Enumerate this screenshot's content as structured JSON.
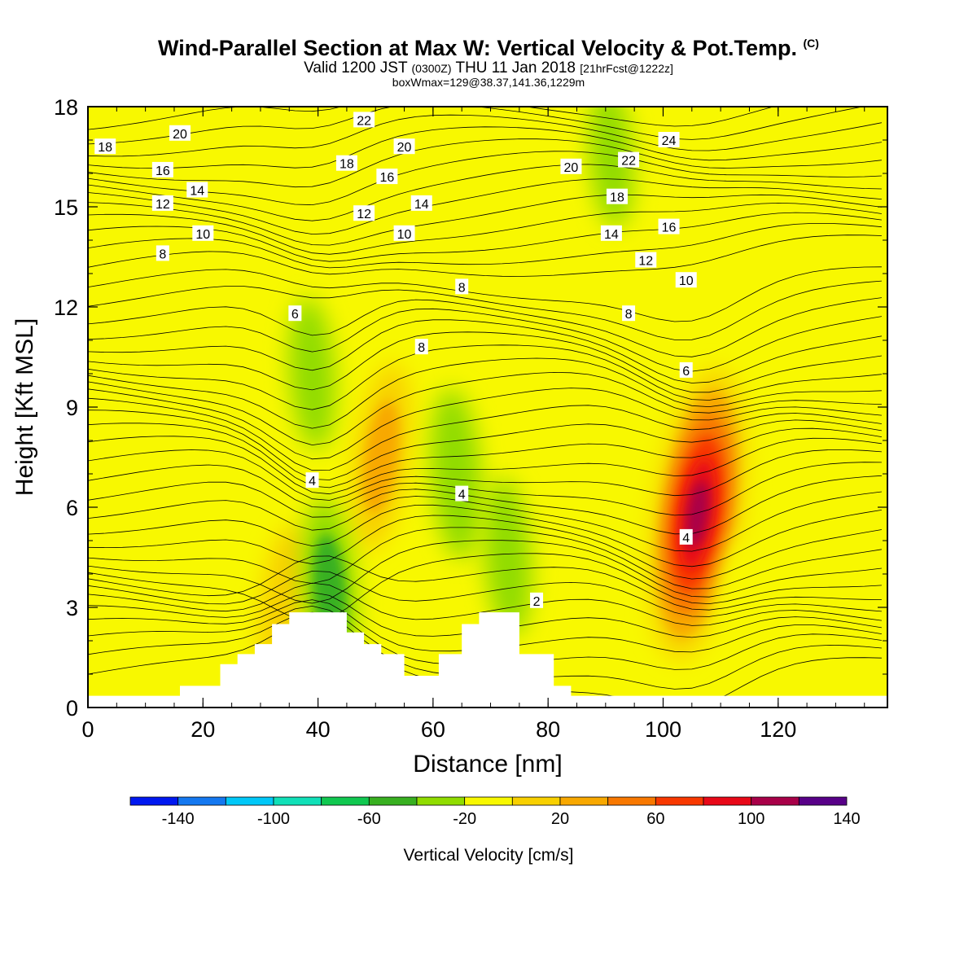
{
  "titles": {
    "main": "Wind-Parallel Section at Max W: Vertical Velocity & Pot.Temp.",
    "copyright": "(C)",
    "valid_prefix": "Valid 1200 JST",
    "valid_utc": "(0300Z)",
    "valid_date": "THU 11 Jan 2018",
    "forecast": "[21hrFcst@1222z]",
    "box_info": "boxWmax=129@38.37,141.36,1229m"
  },
  "colorbar": {
    "label": "Vertical Velocity [cm/s]",
    "tick_labels": [
      "-140",
      "-100",
      "-60",
      "-20",
      "20",
      "60",
      "100",
      "140"
    ],
    "colors": [
      "#0018f0",
      "#1478f0",
      "#00c8f8",
      "#10e0b8",
      "#10c850",
      "#38b020",
      "#90dc00",
      "#f8f800",
      "#f8d000",
      "#f8a800",
      "#f87800",
      "#f83800",
      "#e80818",
      "#a80048",
      "#580088"
    ]
  },
  "chart_data": {
    "type": "contour-section",
    "title": "Wind-Parallel Section at Max W: Vertical Velocity & Pot.Temp.",
    "xlabel": "Distance [nm]",
    "ylabel": "Height [Kft MSL]",
    "xlim": [
      0,
      139
    ],
    "ylim": [
      0,
      18
    ],
    "x_ticks": [
      "0",
      "20",
      "40",
      "60",
      "80",
      "100",
      "120"
    ],
    "y_ticks": [
      "0",
      "3",
      "6",
      "9",
      "12",
      "15",
      "18"
    ],
    "grid": false,
    "filled_field": "Vertical Velocity [cm/s]",
    "contour_field": "Pot.Temp.",
    "max_w_cm_s": 129,
    "updrafts": [
      {
        "x": 106,
        "y": 5.8,
        "w": 130
      },
      {
        "x": 51,
        "y": 7.5,
        "w": 55
      },
      {
        "x": 34,
        "y": 3.2,
        "w": 35
      },
      {
        "x": 63,
        "y": 17.8,
        "w": 25
      },
      {
        "x": 129,
        "y": 16.5,
        "w": 25
      },
      {
        "x": 45,
        "y": 17.8,
        "w": 20
      },
      {
        "x": 88,
        "y": 7.5,
        "w": 15
      },
      {
        "x": 40,
        "y": 14,
        "w": 12
      },
      {
        "x": 123,
        "y": 8,
        "w": 12
      },
      {
        "x": 8,
        "y": 12,
        "w": 10
      },
      {
        "x": 22,
        "y": 9,
        "w": 8
      },
      {
        "x": 113,
        "y": 3.5,
        "w": 10
      },
      {
        "x": 132,
        "y": 4.5,
        "w": 10
      },
      {
        "x": 75,
        "y": 13,
        "w": 10
      }
    ],
    "downdrafts": [
      {
        "x": 42,
        "y": 3.5,
        "w": -55
      },
      {
        "x": 39,
        "y": 10,
        "w": -35
      },
      {
        "x": 64,
        "y": 7,
        "w": -45
      },
      {
        "x": 73,
        "y": 4.5,
        "w": -38
      },
      {
        "x": 91,
        "y": 16.5,
        "w": -30
      },
      {
        "x": 110,
        "y": 16.5,
        "w": -28
      },
      {
        "x": 6,
        "y": 2.5,
        "w": -18
      },
      {
        "x": 66,
        "y": 13,
        "w": -14
      },
      {
        "x": 80,
        "y": 16,
        "w": -14
      },
      {
        "x": 136,
        "y": 14,
        "w": -14
      },
      {
        "x": 137,
        "y": 6,
        "w": -12
      },
      {
        "x": 20,
        "y": 16.5,
        "w": -14
      },
      {
        "x": 5,
        "y": 5,
        "w": -14
      }
    ],
    "terrain": [
      [
        0,
        0.35
      ],
      [
        16,
        0.35
      ],
      [
        16,
        0.65
      ],
      [
        23,
        0.65
      ],
      [
        23,
        1.3
      ],
      [
        26,
        1.3
      ],
      [
        26,
        1.6
      ],
      [
        29,
        1.6
      ],
      [
        29,
        1.9
      ],
      [
        32,
        1.9
      ],
      [
        32,
        2.5
      ],
      [
        35,
        2.5
      ],
      [
        35,
        2.85
      ],
      [
        45,
        2.85
      ],
      [
        45,
        2.25
      ],
      [
        48,
        2.25
      ],
      [
        48,
        1.9
      ],
      [
        51,
        1.9
      ],
      [
        51,
        1.6
      ],
      [
        55,
        1.6
      ],
      [
        55,
        0.95
      ],
      [
        61,
        0.95
      ],
      [
        61,
        1.6
      ],
      [
        65,
        1.6
      ],
      [
        65,
        2.5
      ],
      [
        68,
        2.5
      ],
      [
        68,
        2.85
      ],
      [
        75,
        2.85
      ],
      [
        75,
        1.6
      ],
      [
        81,
        1.6
      ],
      [
        81,
        0.65
      ],
      [
        84,
        0.65
      ],
      [
        84,
        0.35
      ],
      [
        139,
        0.35
      ]
    ],
    "contour_labels": [
      {
        "text": "18",
        "x": 3,
        "y": 16.8
      },
      {
        "text": "20",
        "x": 16,
        "y": 17.2
      },
      {
        "text": "16",
        "x": 13,
        "y": 16.1
      },
      {
        "text": "14",
        "x": 19,
        "y": 15.5
      },
      {
        "text": "12",
        "x": 13,
        "y": 15.1
      },
      {
        "text": "10",
        "x": 20,
        "y": 14.2
      },
      {
        "text": "8",
        "x": 13,
        "y": 13.6
      },
      {
        "text": "22",
        "x": 48,
        "y": 17.6
      },
      {
        "text": "20",
        "x": 55,
        "y": 16.8
      },
      {
        "text": "18",
        "x": 45,
        "y": 16.3
      },
      {
        "text": "16",
        "x": 52,
        "y": 15.9
      },
      {
        "text": "14",
        "x": 58,
        "y": 15.1
      },
      {
        "text": "12",
        "x": 48,
        "y": 14.8
      },
      {
        "text": "10",
        "x": 55,
        "y": 14.2
      },
      {
        "text": "8",
        "x": 65,
        "y": 12.6
      },
      {
        "text": "6",
        "x": 36,
        "y": 11.8
      },
      {
        "text": "8",
        "x": 58,
        "y": 10.8
      },
      {
        "text": "24",
        "x": 101,
        "y": 17
      },
      {
        "text": "22",
        "x": 94,
        "y": 16.4
      },
      {
        "text": "20",
        "x": 84,
        "y": 16.2
      },
      {
        "text": "18",
        "x": 92,
        "y": 15.3
      },
      {
        "text": "16",
        "x": 101,
        "y": 14.4
      },
      {
        "text": "14",
        "x": 91,
        "y": 14.2
      },
      {
        "text": "12",
        "x": 97,
        "y": 13.4
      },
      {
        "text": "10",
        "x": 104,
        "y": 12.8
      },
      {
        "text": "8",
        "x": 94,
        "y": 11.8
      },
      {
        "text": "6",
        "x": 104,
        "y": 10.1
      },
      {
        "text": "4",
        "x": 39,
        "y": 6.8
      },
      {
        "text": "4",
        "x": 65,
        "y": 6.4
      },
      {
        "text": "4",
        "x": 104,
        "y": 5.1
      },
      {
        "text": "2",
        "x": 78,
        "y": 3.2
      }
    ]
  }
}
